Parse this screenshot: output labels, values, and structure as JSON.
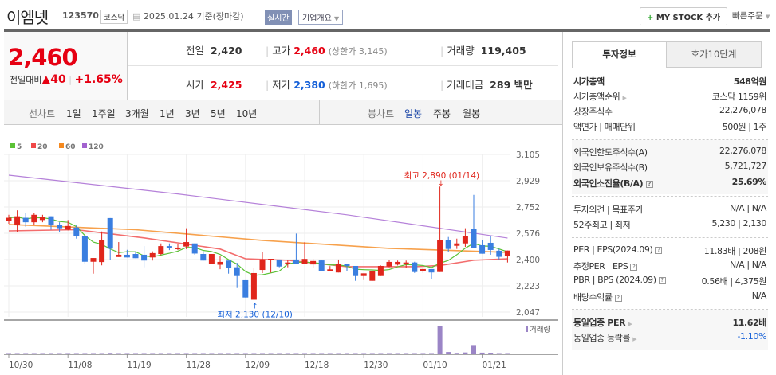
{
  "header": {
    "name": "이엠넷",
    "code": "123570",
    "market": "코스닥",
    "date": "2025.01.24 기준(장마감)",
    "realtime": "실시간",
    "overview": "기업개요",
    "mystock": "MY STOCK 추가",
    "quick_order": "빠른주문"
  },
  "price": {
    "current": "2,460",
    "change_label": "전일대비",
    "change": "40",
    "change_pct": "+1.65%",
    "direction": "up"
  },
  "info": {
    "prev_label": "전일",
    "prev": "2,420",
    "high_label": "고가",
    "high": "2,460",
    "upper_label": "(상한가 3,145)",
    "vol_label": "거래량",
    "vol": "119,405",
    "open_label": "시가",
    "open": "2,425",
    "low_label": "저가",
    "low": "2,380",
    "lower_label": "(하한가 1,695)",
    "amt_label": "거래대금",
    "amt": "289 백만"
  },
  "nav": {
    "line_label": "선차트",
    "line_items": [
      "1일",
      "1주일",
      "3개월",
      "1년",
      "3년",
      "5년",
      "10년"
    ],
    "candle_label": "봉차트",
    "candle_items": [
      "일봉",
      "주봉",
      "월봉"
    ],
    "active_candle": "일봉"
  },
  "side": {
    "tabs": [
      "투자정보",
      "호가10단계"
    ],
    "rows": [
      {
        "l": "시가총액",
        "v": "548억원",
        "bold": true
      },
      {
        "l": "시가총액순위",
        "v": "코스닥 1159위",
        "arrow": true
      },
      {
        "l": "상장주식수",
        "v": "22,276,078"
      },
      {
        "l": "액면가 | 매매단위",
        "v": "500원 | 1주"
      },
      {
        "l": "외국인한도주식수(A)",
        "v": "22,276,078"
      },
      {
        "l": "외국인보유주식수(B)",
        "v": "5,721,727"
      },
      {
        "l": "외국인소진율(B/A)",
        "v": "25.69%",
        "bold": true,
        "q": true
      },
      {
        "l": "투자의견 | 목표주가",
        "v": "N/A | N/A"
      },
      {
        "l": "52주최고 | 최저",
        "v": "5,230 | 2,130"
      },
      {
        "l": "PER | EPS(2024.09)",
        "v": "11.83배 | 208원",
        "q": true
      },
      {
        "l": "추정PER | EPS",
        "v": "N/A | N/A",
        "q": true
      },
      {
        "l": "PBR | BPS (2024.09)",
        "v": "0.56배 | 4,375원",
        "q": true
      },
      {
        "l": "배당수익률",
        "v": "N/A",
        "q": true
      },
      {
        "l": "동일업종 PER",
        "v": "11.62배",
        "bold": true,
        "arrow": true
      },
      {
        "l": "동일업종 등락률",
        "v": "-1.10%",
        "arrow": true,
        "blue": true
      }
    ]
  },
  "chart_data": {
    "type": "candlestick",
    "legend": [
      {
        "name": "5",
        "color": "#5bc236"
      },
      {
        "name": "20",
        "color": "#f04848"
      },
      {
        "name": "60",
        "color": "#f5891f"
      },
      {
        "name": "120",
        "color": "#a262cf"
      }
    ],
    "y_ticks": [
      "3,105",
      "2,929",
      "2,752",
      "2,576",
      "2,400",
      "2,223",
      "2,047"
    ],
    "ylim": [
      2047,
      3105
    ],
    "x_labels": [
      {
        "i": 0,
        "t": "10/30"
      },
      {
        "i": 7,
        "t": "11/08"
      },
      {
        "i": 14,
        "t": "11/19"
      },
      {
        "i": 21,
        "t": "11/28"
      },
      {
        "i": 28,
        "t": "12/09"
      },
      {
        "i": 35,
        "t": "12/18"
      },
      {
        "i": 42,
        "t": "12/30"
      },
      {
        "i": 49,
        "t": "01/10"
      },
      {
        "i": 56,
        "t": "01/21"
      }
    ],
    "annotations": {
      "high": {
        "i": 51,
        "text": "최고 2,890 (01/14)",
        "value": 2890
      },
      "low": {
        "i": 29,
        "text": "최저 2,130 (12/10)",
        "value": 2130
      }
    },
    "volume_label": "거래량",
    "up_color": "#e0261c",
    "down_color": "#3a7ee0",
    "ohlc": [
      [
        2660,
        2700,
        2640,
        2680
      ],
      [
        2635,
        2730,
        2585,
        2690
      ],
      [
        2680,
        2710,
        2620,
        2650
      ],
      [
        2650,
        2710,
        2630,
        2700
      ],
      [
        2665,
        2700,
        2650,
        2685
      ],
      [
        2690,
        2690,
        2600,
        2630
      ],
      [
        2630,
        2650,
        2585,
        2610
      ],
      [
        2600,
        2665,
        2595,
        2625
      ],
      [
        2615,
        2630,
        2540,
        2555
      ],
      [
        2555,
        2555,
        2370,
        2385
      ],
      [
        2385,
        2410,
        2305,
        2410
      ],
      [
        2383,
        2588,
        2361,
        2533
      ],
      [
        2678,
        2678,
        2396,
        2473
      ],
      [
        2417,
        2517,
        2417,
        2432
      ],
      [
        2432,
        2465,
        2414,
        2414
      ],
      [
        2437,
        2450,
        2409,
        2409
      ],
      [
        2432,
        2490,
        2348,
        2393
      ],
      [
        2414,
        2455,
        2393,
        2443
      ],
      [
        2437,
        2508,
        2430,
        2490
      ],
      [
        2490,
        2508,
        2463,
        2475
      ],
      [
        2470,
        2502,
        2463,
        2480
      ],
      [
        2487,
        2610,
        2470,
        2517
      ],
      [
        2508,
        2508,
        2432,
        2440
      ],
      [
        2437,
        2455,
        2393,
        2393
      ],
      [
        2368,
        2437,
        2368,
        2437
      ],
      [
        2365,
        2425,
        2335,
        2384
      ],
      [
        2393,
        2393,
        2305,
        2343
      ],
      [
        2348,
        2378,
        2209,
        2289
      ],
      [
        2261,
        2261,
        2145,
        2145
      ],
      [
        2130,
        2343,
        2130,
        2309
      ],
      [
        2330,
        2450,
        2309,
        2401
      ],
      [
        2400,
        2405,
        2312,
        2405
      ],
      [
        2400,
        2400,
        2348,
        2353
      ],
      [
        2370,
        2395,
        2348,
        2380
      ],
      [
        2400,
        2574,
        2370,
        2370
      ],
      [
        2370,
        2516,
        2370,
        2404
      ],
      [
        2367,
        2404,
        2345,
        2390
      ],
      [
        2394,
        2394,
        2321,
        2321
      ],
      [
        2320,
        2356,
        2320,
        2334
      ],
      [
        2313,
        2400,
        2313,
        2373
      ],
      [
        2373,
        2373,
        2325,
        2357
      ],
      [
        2357,
        2357,
        2257,
        2289
      ],
      [
        2289,
        2307,
        2262,
        2307
      ],
      [
        2257,
        2325,
        2257,
        2325
      ],
      [
        2289,
        2360,
        2289,
        2357
      ],
      [
        2353,
        2400,
        2348,
        2384
      ],
      [
        2366,
        2393,
        2360,
        2384
      ],
      [
        2373,
        2393,
        2346,
        2380
      ],
      [
        2380,
        2385,
        2310,
        2316
      ],
      [
        2320,
        2346,
        2310,
        2336
      ],
      [
        2336,
        2336,
        2266,
        2313
      ],
      [
        2316,
        2890,
        2316,
        2533
      ],
      [
        2533,
        2551,
        2450,
        2471
      ],
      [
        2492,
        2540,
        2471,
        2508
      ],
      [
        2508,
        2610,
        2485,
        2556
      ],
      [
        2604,
        2834,
        2478,
        2478
      ],
      [
        2496,
        2533,
        2439,
        2439
      ],
      [
        2512,
        2560,
        2432,
        2464
      ],
      [
        2459,
        2471,
        2400,
        2418
      ],
      [
        2425,
        2460,
        2380,
        2460
      ]
    ],
    "volume": [
      90000,
      80000,
      60000,
      50000,
      50000,
      50000,
      50000,
      50000,
      50000,
      90000,
      60000,
      80000,
      150000,
      60000,
      50000,
      50000,
      60000,
      50000,
      50000,
      50000,
      50000,
      80000,
      50000,
      50000,
      50000,
      50000,
      60000,
      80000,
      100000,
      90000,
      90000,
      50000,
      50000,
      50000,
      110000,
      100000,
      50000,
      40000,
      40000,
      60000,
      40000,
      40000,
      40000,
      40000,
      40000,
      40000,
      40000,
      40000,
      40000,
      40000,
      40000,
      3100000,
      250000,
      150000,
      200000,
      1000000,
      180000,
      170000,
      80000,
      119405
    ],
    "ma": {
      "120": [
        [
          0,
          2966
        ],
        [
          20,
          2840
        ],
        [
          40,
          2700
        ],
        [
          59,
          2544
        ]
      ],
      "60": [
        [
          0,
          2635
        ],
        [
          15,
          2600
        ],
        [
          30,
          2528
        ],
        [
          45,
          2475
        ],
        [
          59,
          2448
        ]
      ],
      "20": [
        [
          0,
          2592
        ],
        [
          8,
          2600
        ],
        [
          16,
          2545
        ],
        [
          25,
          2470
        ],
        [
          28,
          2405
        ],
        [
          33,
          2395
        ],
        [
          40,
          2352
        ],
        [
          48,
          2352
        ],
        [
          51,
          2360
        ],
        [
          55,
          2395
        ],
        [
          59,
          2405
        ]
      ]
    }
  }
}
